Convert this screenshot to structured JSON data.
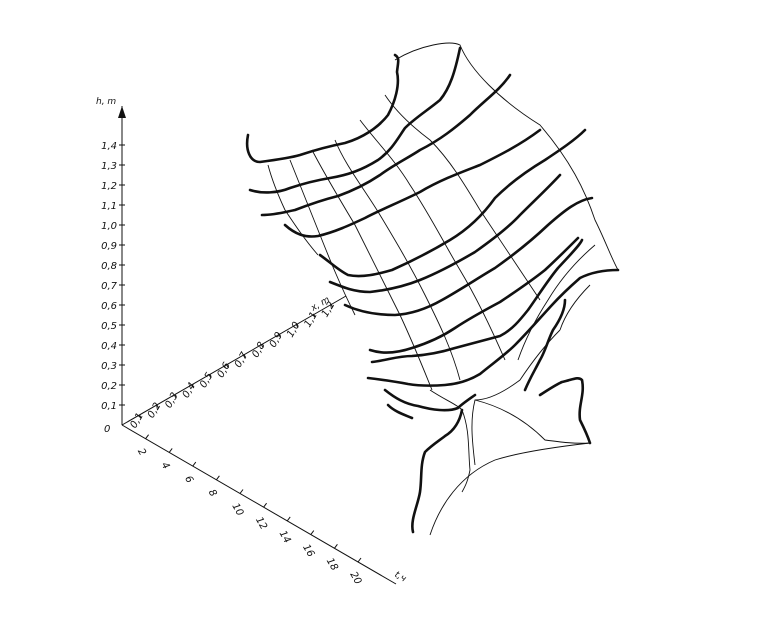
{
  "chart_data": {
    "type": "surface",
    "title": "",
    "axes": {
      "h": {
        "label": "h, m",
        "ticks": [
          "0",
          "0,1",
          "0,2",
          "0,3",
          "0,4",
          "0,5",
          "0,6",
          "0,7",
          "0,8",
          "0,9",
          "1,0",
          "1,1",
          "1,2",
          "1,3",
          "1,4"
        ],
        "range": [
          0,
          1.4
        ]
      },
      "x": {
        "label": "x, m",
        "ticks": [
          "0,1",
          "0,2",
          "0,3",
          "0,4",
          "0,5",
          "0,6",
          "0,7",
          "0,8",
          "0,9",
          "1,0",
          "1,1",
          "1,2"
        ],
        "range": [
          0,
          1.2
        ]
      },
      "t": {
        "label": "t,ч",
        "ticks": [
          "2",
          "4",
          "6",
          "8",
          "10",
          "12",
          "14",
          "16",
          "18",
          "20"
        ],
        "range": [
          0,
          20
        ]
      }
    },
    "origin_label": "0",
    "grid": false
  }
}
